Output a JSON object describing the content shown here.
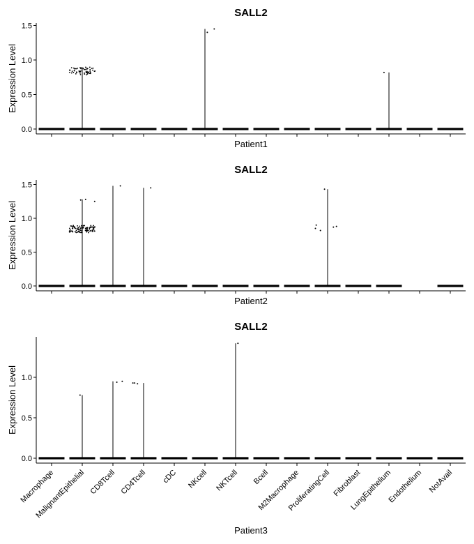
{
  "chart_data": {
    "type": "scatter",
    "style": "violin-jitter",
    "categories": [
      "Macrophage",
      "MalignantEpithelial",
      "CD8Tcell",
      "CD4Tcell",
      "cDC",
      "NKcell",
      "NKTcell",
      "Bcell",
      "M2Macrophage",
      "ProliferatingCell",
      "Fibroblast",
      "LungEpithelium",
      "Endothelium",
      "NotAvail"
    ],
    "ylabel": "Expression Level",
    "panels": [
      {
        "title": "SALL2",
        "xlabel": "Patient1",
        "ylim": [
          0,
          1.5
        ],
        "yticks": [
          "0.0",
          "0.5",
          "1.0",
          "1.5"
        ],
        "yticks_values": [
          0,
          0.5,
          1.0,
          1.5
        ],
        "zero_band": [
          1,
          1,
          1,
          1,
          1,
          1,
          1,
          1,
          1,
          1,
          1,
          1,
          1,
          1
        ],
        "series": [
          {
            "category": "MalignantEpithelial",
            "max": 0.88,
            "cluster_center": 0.84,
            "cluster_count": 60,
            "outliers": []
          },
          {
            "category": "NKcell",
            "max": 1.45,
            "outliers": [
              1.4,
              1.45
            ]
          },
          {
            "category": "LungEpithelium",
            "max": 0.82,
            "outliers": [
              0.82
            ]
          }
        ]
      },
      {
        "title": "SALL2",
        "xlabel": "Patient2",
        "ylim": [
          0,
          1.5
        ],
        "yticks": [
          "0.0",
          "0.5",
          "1.0",
          "1.5"
        ],
        "yticks_values": [
          0,
          0.5,
          1.0,
          1.5
        ],
        "zero_band": [
          1,
          1,
          1,
          1,
          1,
          1,
          1,
          1,
          1,
          1,
          1,
          1,
          0,
          1
        ],
        "series": [
          {
            "category": "MalignantEpithelial",
            "max": 1.28,
            "cluster_center": 0.84,
            "cluster_count": 110,
            "outliers": [
              1.27,
              1.28,
              1.25
            ]
          },
          {
            "category": "CD8Tcell",
            "max": 1.48,
            "outliers": [
              1.48
            ]
          },
          {
            "category": "CD4Tcell",
            "max": 1.45,
            "outliers": [
              1.45
            ]
          },
          {
            "category": "ProliferatingCell",
            "max": 1.43,
            "outliers": [
              1.43,
              0.82,
              0.87,
              0.9,
              0.85,
              0.88
            ]
          }
        ]
      },
      {
        "title": "SALL2",
        "xlabel": "Patient3",
        "ylim": [
          0,
          1.45
        ],
        "yticks": [
          "0.0",
          "0.5",
          "1.0"
        ],
        "yticks_values": [
          0,
          0.5,
          1.0
        ],
        "zero_band": [
          1,
          1,
          1,
          1,
          1,
          1,
          1,
          1,
          1,
          1,
          1,
          1,
          1,
          1
        ],
        "series": [
          {
            "category": "MalignantEpithelial",
            "max": 0.78,
            "outliers": [
              0.78
            ]
          },
          {
            "category": "CD8Tcell",
            "max": 0.95,
            "outliers": [
              0.95,
              0.94
            ]
          },
          {
            "category": "CD4Tcell",
            "max": 0.93,
            "outliers": [
              0.92,
              0.93,
              0.93
            ]
          },
          {
            "category": "NKTcell",
            "max": 1.42,
            "outliers": [
              1.42
            ]
          }
        ]
      }
    ]
  }
}
